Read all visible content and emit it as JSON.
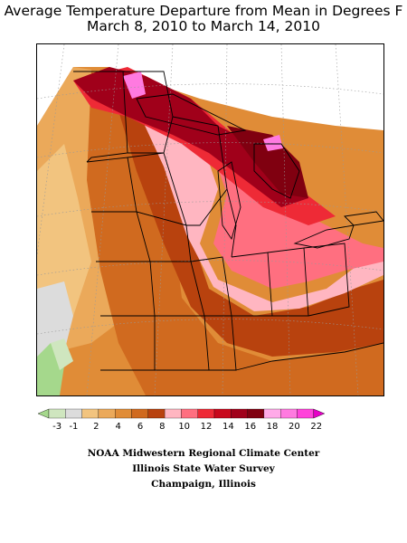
{
  "title_line1": "Average Temperature Departure from Mean in Degrees F",
  "title_line2": "March 8, 2010 to March 14, 2010",
  "legend": {
    "labels": [
      "-3",
      "-1",
      "2",
      "4",
      "6",
      "8",
      "10",
      "12",
      "14",
      "16",
      "18",
      "20",
      "22"
    ],
    "colors": [
      "#a5d88c",
      "#cfe6bf",
      "#dcdcdc",
      "#f2c47f",
      "#eba95a",
      "#e08c37",
      "#d06a1f",
      "#b8420e",
      "#ffb6c1",
      "#ff6f80",
      "#ee2a36",
      "#c8081c",
      "#a0001a",
      "#800010",
      "#ffaae8",
      "#ff7ae0",
      "#ff42da",
      "#e600c8"
    ]
  },
  "colors": {
    "grey": "#dcdcdc",
    "light_green": "#a5d88c",
    "orange_light": "#eba95a",
    "orange": "#e08c37",
    "orange_dark": "#d06a1f",
    "brown": "#b8420e",
    "pink_light": "#ffb6c1",
    "pink": "#ff6f80",
    "red": "#ee2a36",
    "dark_red": "#a0001a",
    "magenta": "#ff7ae0"
  },
  "credits": {
    "line1": "NOAA Midwestern Regional Climate Center",
    "line2": "Illinois State Water Survey",
    "line3": "Champaign, Illinois"
  }
}
